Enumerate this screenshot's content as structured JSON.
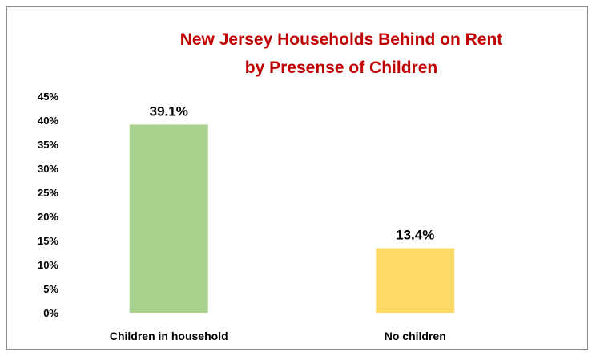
{
  "chart_data": {
    "type": "bar",
    "title": "New Jersey Households  Behind on Rent",
    "subtitle": "by Presense of Children",
    "categories": [
      "Children in household",
      "No children"
    ],
    "values": [
      39.1,
      13.4
    ],
    "data_labels": [
      "39.1%",
      "13.4%"
    ],
    "bar_colors": [
      "#a9d18e",
      "#ffd966"
    ],
    "ylim": [
      0,
      45
    ],
    "yticks": [
      0,
      5,
      10,
      15,
      20,
      25,
      30,
      35,
      40,
      45
    ],
    "ytick_labels": [
      "0%",
      "5%",
      "10%",
      "15%",
      "20%",
      "25%",
      "30%",
      "35%",
      "40%",
      "45%"
    ],
    "grid": false,
    "legend": "none",
    "title_color": "#c00000"
  }
}
